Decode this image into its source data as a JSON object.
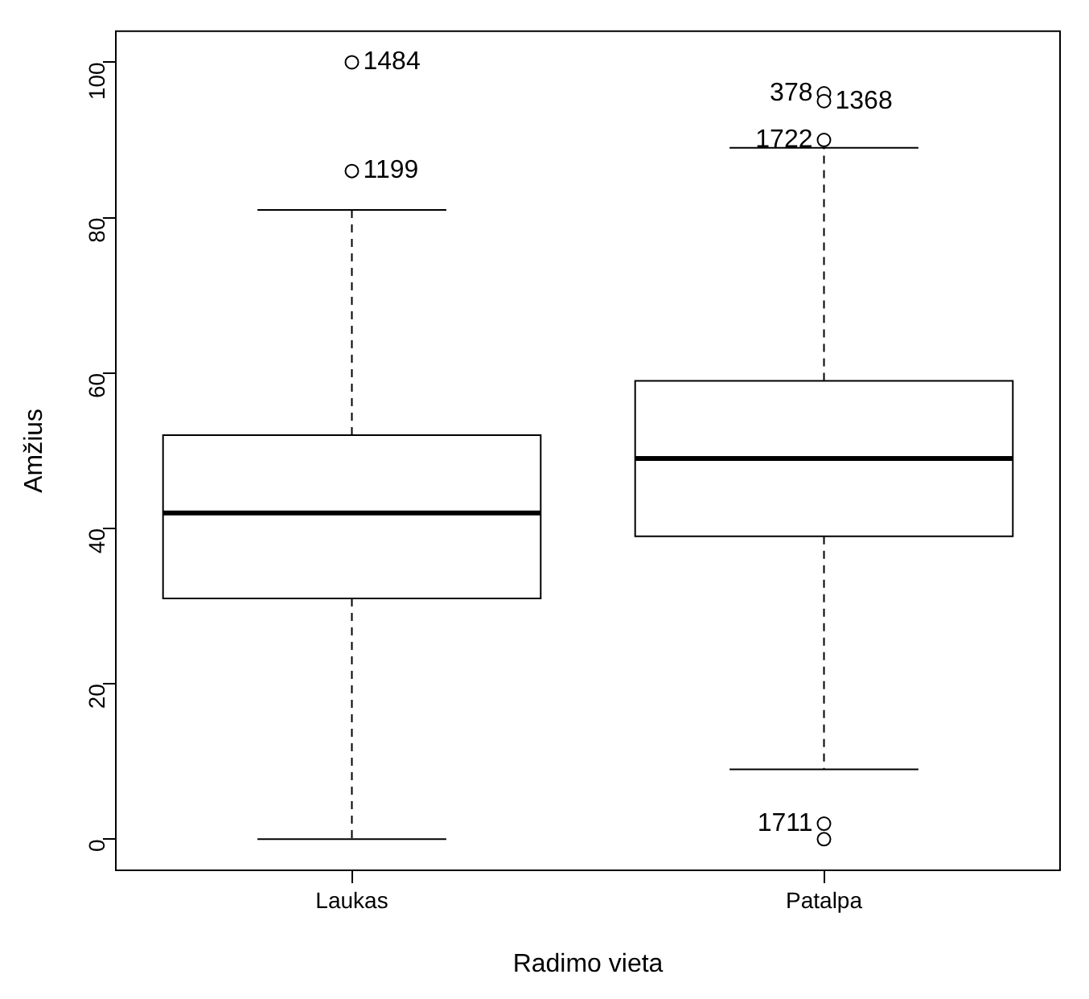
{
  "chart_data": {
    "type": "box",
    "xlabel": "Radimo vieta",
    "ylabel": "Amžius",
    "categories": [
      "Laukas",
      "Patalpa"
    ],
    "boxes": [
      {
        "low": 0,
        "q1": 31,
        "median": 42,
        "q3": 52,
        "high": 81,
        "outliers": [
          100,
          86
        ]
      },
      {
        "low": 9,
        "q1": 39,
        "median": 49,
        "q3": 59,
        "high": 89,
        "outliers": [
          96,
          95,
          90,
          2,
          0
        ]
      }
    ],
    "ylim": [
      -4,
      104
    ],
    "yticks": [
      0,
      20,
      40,
      60,
      80,
      100
    ],
    "grid": false,
    "legend": false,
    "annotations": [
      "1484",
      "1199",
      "378",
      "1368",
      "1722",
      "1711"
    ]
  }
}
